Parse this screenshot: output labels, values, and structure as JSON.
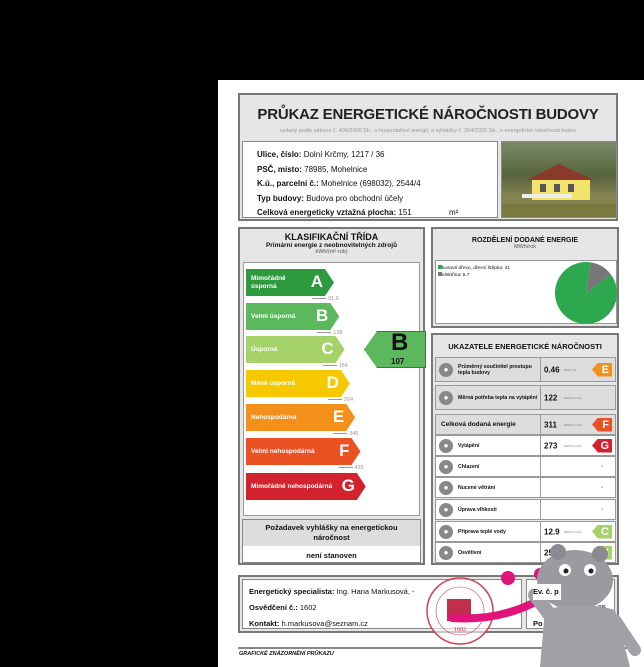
{
  "header": {
    "title": "PRŮKAZ ENERGETICKÉ NÁROČNOSTI BUDOVY",
    "subtitle": "vydaný podle zákona č. 406/2000 Sb., o hospodaření energií, a vyhlášky č. 264/2020 Sb., o energetické náročnosti budov"
  },
  "building": [
    {
      "label": "Ulice, číslo:",
      "value": "Dolní Krčmy, 1217 / 36"
    },
    {
      "label": "PSČ, místo:",
      "value": "78985, Mohelnice"
    },
    {
      "label": "K.ú., parcelní č.:",
      "value": "Mohelnice (698032), 2544/4"
    },
    {
      "label": "Typ budovy:",
      "value": "Budova pro obchodní účely"
    },
    {
      "label": "Celková energeticky vztažná plocha:",
      "value": "151",
      "unit": "m²"
    }
  ],
  "classification": {
    "title": "KLASIFIKAČNÍ TŘÍDA",
    "subtitle": "Primární energie z neobnovitelných zdrojů",
    "unit": "kWh/(m²·rok)",
    "classes": [
      {
        "label": "Mimořádně úsporná",
        "letter": "A",
        "color": "#2e9a3e"
      },
      {
        "label": "Velmi úsporná",
        "letter": "B",
        "color": "#5cb85c"
      },
      {
        "label": "Úsporná",
        "letter": "C",
        "color": "#a6d26a"
      },
      {
        "label": "Méně úsporná",
        "letter": "D",
        "color": "#f5c800"
      },
      {
        "label": "Nehospodárná",
        "letter": "E",
        "color": "#f39019"
      },
      {
        "label": "Velmi nehospodárná",
        "letter": "F",
        "color": "#ea5223"
      },
      {
        "label": "Mimořádně nehospodárná",
        "letter": "G",
        "color": "#d2222e"
      }
    ],
    "thresholds": [
      "91.9",
      "138",
      "184",
      "264",
      "345",
      "425"
    ],
    "result": {
      "letter": "B",
      "value": "107"
    },
    "requirement": {
      "title": "Požadavek vyhlášky na energetickou náročnost",
      "value": "není stanoven"
    }
  },
  "distribution": {
    "title": "ROZDĚLENÍ DODANÉ ENERGIE",
    "unit": "MWh/rok",
    "items": [
      {
        "label": "kusové dřevo, dřevní štěpka: 41",
        "value": 41,
        "color": "#2ea84e"
      },
      {
        "label": "elektřina: 5.7",
        "value": 5.7,
        "color": "#777777"
      }
    ]
  },
  "indicators": {
    "title": "UKAZATELE ENERGETICKÉ NÁROČNOSTI",
    "rows": [
      {
        "label": "Průměrný součinitel prostupu tepla budovy",
        "value": "0.46",
        "unit": "W/(m²·K)",
        "cls": "E",
        "color": "#f39019",
        "icon": "house-icon"
      },
      {
        "label": "Měrná potřeba tepla na vytápění",
        "value": "122",
        "unit": "kWh/(m²·rok)",
        "icon": "radiator-icon"
      },
      {
        "label": "Celková dodaná energie",
        "value": "311",
        "unit": "kWh/(m²·rok)",
        "cls": "F",
        "color": "#ea5223",
        "icon": ""
      },
      {
        "label": "Vytápění",
        "value": "273",
        "unit": "kWh/(m²·rok)",
        "cls": "G",
        "color": "#d2222e",
        "icon": "thermometer-plus-icon"
      },
      {
        "label": "Chlazení",
        "value": "-",
        "icon": "thermometer-minus-icon"
      },
      {
        "label": "Nucené větrání",
        "value": "-",
        "icon": "fan-icon"
      },
      {
        "label": "Úprava vlhkosti",
        "value": "-",
        "icon": "humidity-icon"
      },
      {
        "label": "Příprava teplé vody",
        "value": "12.9",
        "unit": "kWh/(m²·rok)",
        "cls": "C",
        "color": "#a6d26a",
        "icon": "faucet-icon"
      },
      {
        "label": "Osvětlení",
        "value": "25",
        "unit": "kWh/(m²·rok)",
        "cls": "C",
        "color": "#a6d26a",
        "icon": "bulb-icon"
      }
    ]
  },
  "specialist": {
    "name_label": "Energetický specialista:",
    "name": "Ing. Hana Markusová, -",
    "cert_label": "Osvědčení č.:",
    "cert": "1602",
    "contact_label": "Kontakt:",
    "contact": "h.markusova@seznam.cz",
    "ev_label": "Ev. č. p",
    "po_label": "Po",
    "partial_value": "25"
  },
  "stamp": {
    "text": "ING. HANA MARKUSOVÁ · energetický specialista · 1602",
    "logo": "ES"
  },
  "footer": {
    "caption": "GRAFICKÉ ZNÁZORNĚNÍ PRŮKAZU"
  }
}
